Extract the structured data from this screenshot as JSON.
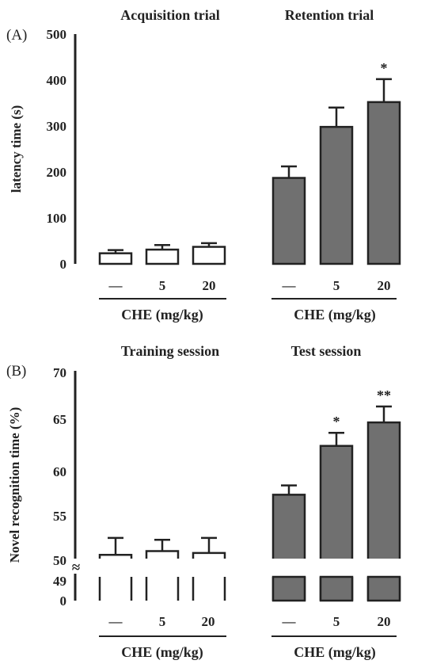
{
  "chart_data": [
    {
      "type": "bar",
      "panel_label": "(A)",
      "ylabel": "latency time (s)",
      "ylim": [
        0,
        500
      ],
      "yticks": [
        "0",
        "100",
        "200",
        "300",
        "400",
        "500"
      ],
      "groups": [
        {
          "title": "Acquisition trial",
          "xlabel": "CHE (mg/kg)",
          "categories": [
            "—",
            "5",
            "20"
          ],
          "values": [
            23,
            31,
            37
          ],
          "errors": [
            7,
            10,
            8
          ],
          "marks": [
            "",
            "",
            ""
          ],
          "fill": "#ffffff"
        },
        {
          "title": "Retention trial",
          "xlabel": "CHE (mg/kg)",
          "categories": [
            "—",
            "5",
            "20"
          ],
          "values": [
            187,
            298,
            352
          ],
          "errors": [
            25,
            42,
            50
          ],
          "marks": [
            "",
            "",
            "*"
          ],
          "fill": "#707070"
        }
      ]
    },
    {
      "type": "bar",
      "panel_label": "(B)",
      "ylabel": "Novel recognition time (%)",
      "ylim": [
        49,
        70
      ],
      "axis_break": "≈",
      "yticks": [
        "0",
        "49",
        "50",
        "55",
        "60",
        "65",
        "70"
      ],
      "groups": [
        {
          "title": "Training session",
          "xlabel": "CHE (mg/kg)",
          "categories": [
            "—",
            "5",
            "20"
          ],
          "values": [
            50.4,
            50.8,
            50.6
          ],
          "errors": [
            1.8,
            1.2,
            1.6
          ],
          "marks": [
            "",
            "",
            ""
          ],
          "fill": "#ffffff"
        },
        {
          "title": "Test session",
          "xlabel": "CHE (mg/kg)",
          "categories": [
            "—",
            "5",
            "20"
          ],
          "values": [
            56.8,
            62.0,
            64.5
          ],
          "errors": [
            1.0,
            1.4,
            1.7
          ],
          "marks": [
            "",
            "*",
            "**"
          ],
          "fill": "#707070"
        }
      ]
    }
  ]
}
